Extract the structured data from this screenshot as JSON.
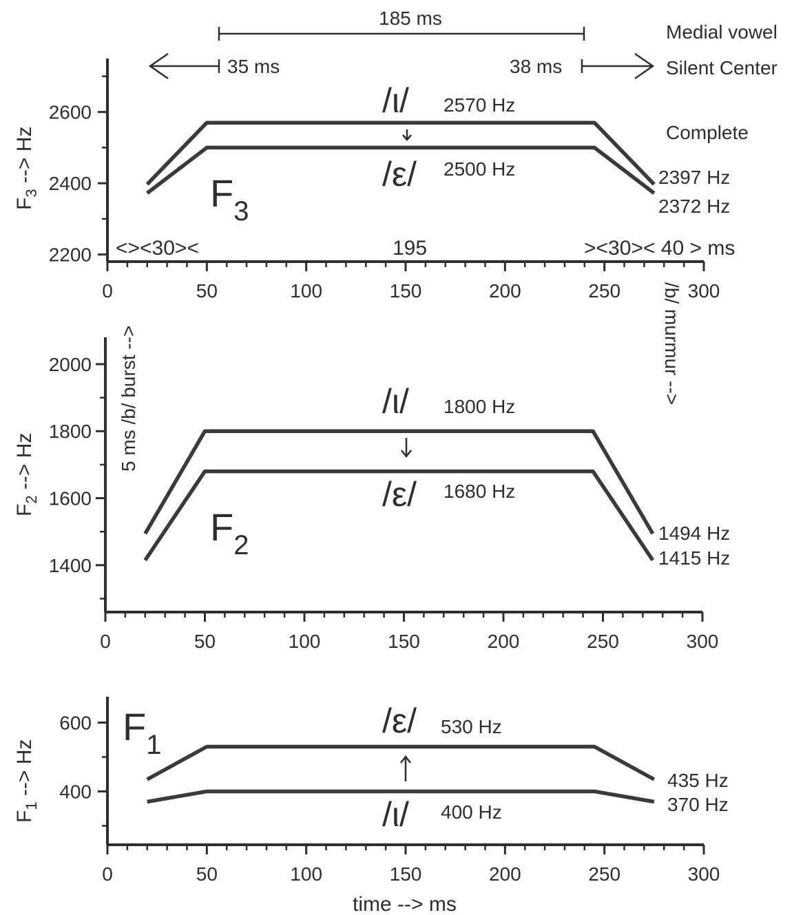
{
  "colors": {
    "ink": "#2e2e2e",
    "trace": "#3a3a3a",
    "background": "#ffffff"
  },
  "chart_data": [
    {
      "type": "line",
      "panel": "F3",
      "panel_label_main": "F",
      "panel_label_sub": "3",
      "ylabel_main": "F",
      "ylabel_sub": "3",
      "ylabel_rest": " --> Hz",
      "xlim": [
        0,
        300
      ],
      "ylim": [
        2180,
        2750
      ],
      "x_ticks": [
        0,
        50,
        100,
        150,
        200,
        250,
        300
      ],
      "y_ticks": [
        2200,
        2400,
        2600
      ],
      "x_tick_labels": [
        "0",
        "50",
        "100",
        "150",
        "200",
        "250",
        "300"
      ],
      "y_tick_labels": [
        "2200",
        "2400",
        "2600"
      ],
      "series": [
        {
          "x": [
            20,
            50,
            245,
            275
          ],
          "y": [
            2397,
            2570,
            2570,
            2397
          ]
        },
        {
          "x": [
            20,
            50,
            245,
            275
          ],
          "y": [
            2372,
            2500,
            2500,
            2372
          ]
        }
      ],
      "vowel_top": "/ι/",
      "vowel_top_hz": "2570 Hz",
      "vowel_bottom": "/ε/",
      "vowel_bottom_hz": "2500 Hz",
      "arrow_dir": "down",
      "end_label_top": "2397 Hz",
      "end_label_bottom": "2372 Hz",
      "timing_row": {
        "left": "<><30><",
        "center": "195",
        "right": "><30>< 40 > ms"
      }
    },
    {
      "type": "line",
      "panel": "F2",
      "panel_label_main": "F",
      "panel_label_sub": "2",
      "ylabel_main": "F",
      "ylabel_sub": "2",
      "ylabel_rest": " --> Hz",
      "xlim": [
        0,
        300
      ],
      "ylim": [
        1260,
        2080
      ],
      "x_ticks": [
        0,
        50,
        100,
        150,
        200,
        250,
        300
      ],
      "y_ticks": [
        1400,
        1600,
        1800,
        2000
      ],
      "x_tick_labels": [
        "0",
        "50",
        "100",
        "150",
        "200",
        "250",
        "300"
      ],
      "y_tick_labels": [
        "1400",
        "1600",
        "1800",
        "2000"
      ],
      "series": [
        {
          "x": [
            20,
            50,
            245,
            275
          ],
          "y": [
            1494,
            1800,
            1800,
            1494
          ]
        },
        {
          "x": [
            20,
            50,
            245,
            275
          ],
          "y": [
            1415,
            1680,
            1680,
            1415
          ]
        }
      ],
      "vowel_top": "/ι/",
      "vowel_top_hz": "1800 Hz",
      "vowel_bottom": "/ε/",
      "vowel_bottom_hz": "1680 Hz",
      "arrow_dir": "down",
      "end_label_top": "1494 Hz",
      "end_label_bottom": "1415 Hz"
    },
    {
      "type": "line",
      "panel": "F1",
      "panel_label_main": "F",
      "panel_label_sub": "1",
      "ylabel_main": "F",
      "ylabel_sub": "1",
      "ylabel_rest": " --> Hz",
      "xlabel": "time --> ms",
      "xlim": [
        0,
        300
      ],
      "ylim": [
        245,
        675
      ],
      "x_ticks": [
        0,
        50,
        100,
        150,
        200,
        250,
        300
      ],
      "y_ticks": [
        400,
        600
      ],
      "x_tick_labels": [
        "0",
        "50",
        "100",
        "150",
        "200",
        "250",
        "300"
      ],
      "y_tick_labels": [
        "400",
        "600"
      ],
      "series": [
        {
          "x": [
            20,
            50,
            245,
            275
          ],
          "y": [
            435,
            530,
            530,
            435
          ]
        },
        {
          "x": [
            20,
            50,
            245,
            275
          ],
          "y": [
            370,
            400,
            400,
            370
          ]
        }
      ],
      "vowel_top": "/ε/",
      "vowel_top_hz": "530 Hz",
      "vowel_bottom": "/ι/",
      "vowel_bottom_hz": "400 Hz",
      "arrow_dir": "up",
      "end_label_top": "435 Hz",
      "end_label_bottom": "370 Hz"
    }
  ],
  "annotations": {
    "total_duration": "185 ms",
    "left_duration": "35 ms",
    "right_duration": "38 ms",
    "medial_vowel": "Medial vowel",
    "silent_center": "Silent Center",
    "complete": "Complete",
    "burst": "5 ms /b/ burst -->",
    "murmur": "/b/ murmur -->"
  }
}
